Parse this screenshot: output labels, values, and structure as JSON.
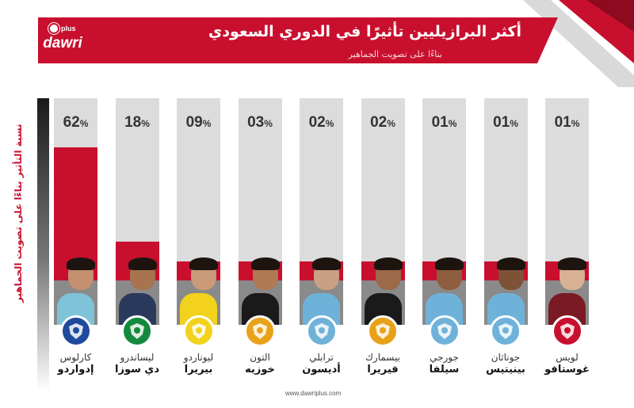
{
  "header": {
    "logo_top": "plus",
    "logo_main": "dawri",
    "title": "أكثر البرازيليين تأثيرًا في الدوري السعودي",
    "subtitle": "بناءًا على تصويت الجماهير"
  },
  "colors": {
    "accent": "#c8102e",
    "track": "#dcdcdc",
    "base": "#8a8a8a"
  },
  "chart_data": {
    "type": "bar",
    "title": "أكثر البرازيليين تأثيرًا في الدوري السعودي",
    "subtitle": "بناءًا على تصويت الجماهير",
    "ylabel": "نسبة التأثير بناءًا على تصويت الجماهير",
    "xlabel": "",
    "ylim": [
      0,
      100
    ],
    "grid": false,
    "categories": [
      "كارلوس إدواردو",
      "ليساندرو دي سوزا",
      "ليوناردو بيريرا",
      "التون خوزيه",
      "ترابلي أديسون",
      "بيسمارك فيريرا",
      "جورجي سيلفا",
      "جوناثان بينيتيس",
      "لويس غوستافو"
    ],
    "values": [
      62,
      18,
      9,
      3,
      2,
      2,
      1,
      1,
      1
    ],
    "value_labels": [
      "62",
      "18",
      "09",
      "03",
      "02",
      "02",
      "01",
      "01",
      "01"
    ],
    "unit": "%"
  },
  "players": [
    {
      "first": "كارلوس",
      "last": "إدواردو",
      "badge_icon": "hilal-crest-icon",
      "shirt": "#7fc3d8",
      "badge_color": "#1f4a9c",
      "skin": "#c49070"
    },
    {
      "first": "ليساندرو",
      "last": "دي سوزا",
      "badge_icon": "ahli-crest-icon",
      "shirt": "#2a3a5c",
      "badge_color": "#138a3d",
      "skin": "#a8744f"
    },
    {
      "first": "ليوناردو",
      "last": "بيريرا",
      "badge_icon": "nassr-crest-icon",
      "shirt": "#f2d21c",
      "badge_color": "#f2d21c",
      "skin": "#c99a78"
    },
    {
      "first": "التون",
      "last": "خوزيه",
      "badge_icon": "qadsiah-crest-icon",
      "shirt": "#1a1a1a",
      "badge_color": "#e8a21a",
      "skin": "#b07a55"
    },
    {
      "first": "ترابلي",
      "last": "أديسون",
      "badge_icon": "batin-crest-icon",
      "shirt": "#6fb2d9",
      "badge_color": "#6fb2d9",
      "skin": "#caa084"
    },
    {
      "first": "بيسمارك",
      "last": "فيريرا",
      "badge_icon": "qadsiah-crest-icon",
      "shirt": "#1a1a1a",
      "badge_color": "#e8a21a",
      "skin": "#9c6a48"
    },
    {
      "first": "جورجي",
      "last": "سيلفا",
      "badge_icon": "batin-crest-icon",
      "shirt": "#6fb2d9",
      "badge_color": "#6fb2d9",
      "skin": "#8f5e3f"
    },
    {
      "first": "جوناثان",
      "last": "بينيتيس",
      "badge_icon": "batin-crest-icon",
      "shirt": "#6fb2d9",
      "badge_color": "#6fb2d9",
      "skin": "#7e5236"
    },
    {
      "first": "لويس",
      "last": "غوستافو",
      "badge_icon": "faisaly-crest-icon",
      "shirt": "#7a1a24",
      "badge_color": "#c8102e",
      "skin": "#d8b094"
    }
  ],
  "footer": {
    "website": "www.dawriplus.com"
  }
}
